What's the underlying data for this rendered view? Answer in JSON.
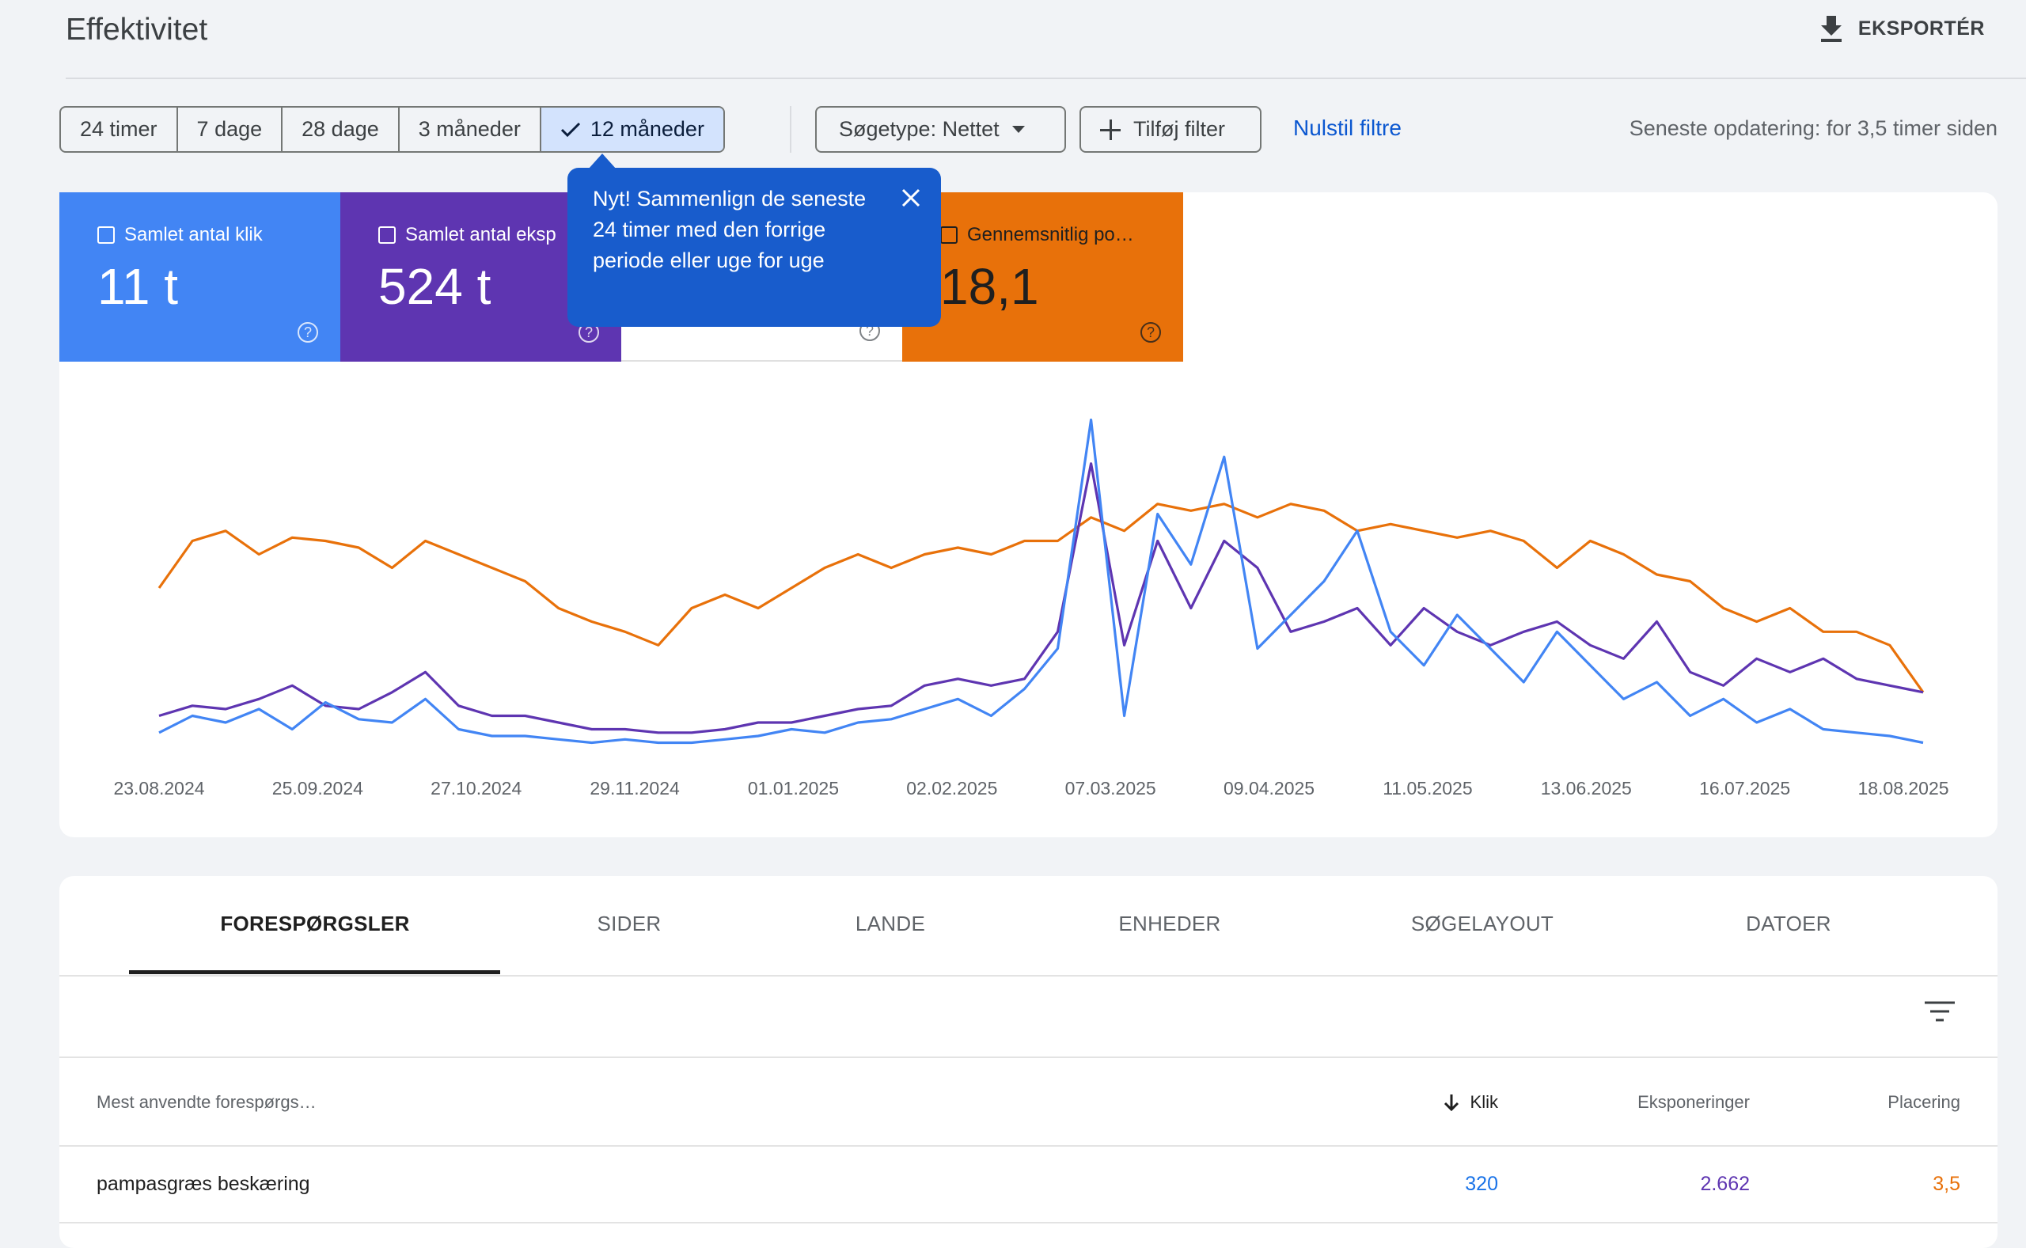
{
  "header": {
    "title": "Effektivitet",
    "export": "EKSPORTÉR"
  },
  "filters": {
    "ranges": [
      "24 timer",
      "7 dage",
      "28 dage",
      "3 måneder",
      "12 måneder"
    ],
    "selected": 4,
    "search_type": "Søgetype: Nettet",
    "add_filter": "Tilføj filter",
    "reset": "Nulstil filtre",
    "updated": "Seneste opdatering: for 3,5 timer siden"
  },
  "metrics": [
    {
      "label": "Samlet antal klik",
      "value": "11 t",
      "color": "#4285f4"
    },
    {
      "label": "Samlet antal eksp",
      "value": "524 t",
      "color": "#5e35b1"
    },
    {
      "color": "#ffffff"
    },
    {
      "label": "Gennemsnitlig po…",
      "value": "18,1",
      "color": "#e8710a"
    }
  ],
  "tooltip": "Nyt! Sammenlign de seneste 24 timer med den forrige periode eller uge for uge",
  "chart_data": {
    "type": "line",
    "ylim": [
      0,
      100
    ],
    "xticks": [
      "23.08.2024",
      "25.09.2024",
      "27.10.2024",
      "29.11.2024",
      "01.01.2025",
      "02.02.2025",
      "07.03.2025",
      "09.04.2025",
      "11.05.2025",
      "13.06.2025",
      "16.07.2025",
      "18.08.2025"
    ],
    "series": [
      {
        "color": "#e8710a",
        "values": [
          48,
          62,
          65,
          58,
          63,
          62,
          60,
          54,
          62,
          58,
          54,
          50,
          42,
          38,
          35,
          31,
          42,
          46,
          42,
          48,
          54,
          58,
          54,
          58,
          60,
          58,
          62,
          62,
          69,
          65,
          73,
          71,
          73,
          69,
          73,
          71,
          65,
          67,
          65,
          63,
          65,
          62,
          54,
          62,
          58,
          52,
          50,
          42,
          38,
          42,
          35,
          35,
          31,
          17
        ]
      },
      {
        "color": "#5e35b1",
        "values": [
          10,
          13,
          12,
          15,
          19,
          13,
          12,
          17,
          23,
          13,
          10,
          10,
          8,
          6,
          6,
          5,
          5,
          6,
          8,
          8,
          10,
          12,
          13,
          19,
          21,
          19,
          21,
          35,
          85,
          31,
          62,
          42,
          62,
          54,
          35,
          38,
          42,
          31,
          42,
          35,
          31,
          35,
          38,
          31,
          27,
          38,
          23,
          19,
          27,
          23,
          27,
          21,
          19,
          17
        ]
      },
      {
        "color": "#4285f4",
        "values": [
          5,
          10,
          8,
          12,
          6,
          14,
          9,
          8,
          15,
          6,
          4,
          4,
          3,
          2,
          3,
          2,
          2,
          3,
          4,
          6,
          5,
          8,
          9,
          12,
          15,
          10,
          18,
          30,
          98,
          10,
          70,
          55,
          87,
          30,
          40,
          50,
          65,
          35,
          25,
          40,
          30,
          20,
          35,
          25,
          15,
          20,
          10,
          15,
          8,
          12,
          6,
          5,
          4,
          2
        ]
      }
    ]
  },
  "tabs": [
    "FORESPØRGSLER",
    "SIDER",
    "LANDE",
    "ENHEDER",
    "SØGELAYOUT",
    "DATOER"
  ],
  "table": {
    "columns": [
      "Mest anvendte forespørgs…",
      "Klik",
      "Eksponeringer",
      "Placering"
    ],
    "rows": [
      [
        "pampasgræs beskæring",
        "320",
        "2.662",
        "3,5"
      ]
    ]
  }
}
